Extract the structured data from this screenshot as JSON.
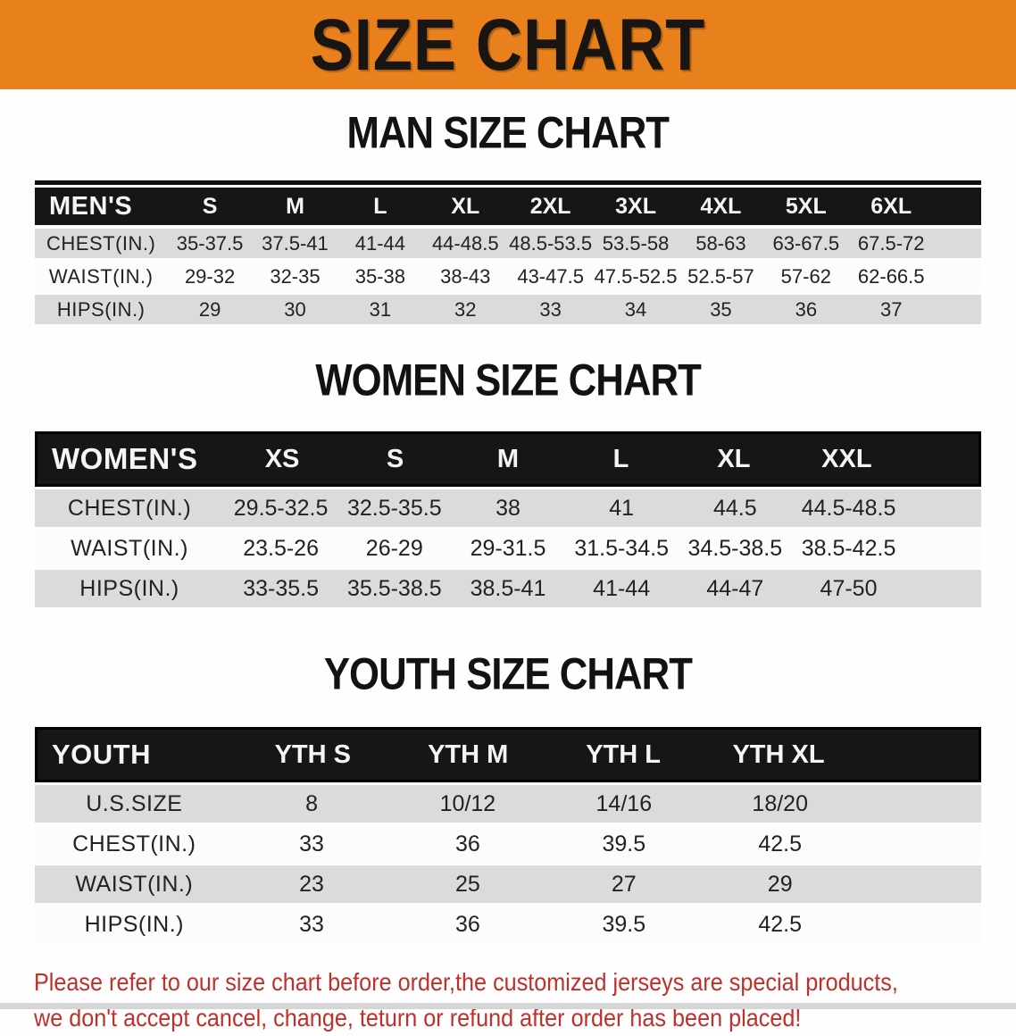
{
  "banner": {
    "title": "SIZE CHART"
  },
  "colors": {
    "banner_bg": "#e8811c",
    "header_bar": "#161616",
    "row_gray": "#dbdbdb",
    "disclaimer_red": "#c0302a"
  },
  "sections": [
    {
      "heading": "MAN SIZE CHART",
      "table": {
        "header_label": "MEN'S",
        "sizes": [
          "S",
          "M",
          "L",
          "XL",
          "2XL",
          "3XL",
          "4XL",
          "5XL",
          "6XL"
        ],
        "rows": [
          {
            "label": "CHEST(IN.)",
            "values": [
              "35-37.5",
              "37.5-41",
              "41-44",
              "44-48.5",
              "48.5-53.5",
              "53.5-58",
              "58-63",
              "63-67.5",
              "67.5-72"
            ]
          },
          {
            "label": "WAIST(IN.)",
            "values": [
              "29-32",
              "32-35",
              "35-38",
              "38-43",
              "43-47.5",
              "47.5-52.5",
              "52.5-57",
              "57-62",
              "62-66.5"
            ]
          },
          {
            "label": "HIPS(IN.)",
            "values": [
              "29",
              "30",
              "31",
              "32",
              "33",
              "34",
              "35",
              "36",
              "37"
            ]
          }
        ]
      }
    },
    {
      "heading": "WOMEN SIZE CHART",
      "table": {
        "header_label": "WOMEN'S",
        "sizes": [
          "XS",
          "S",
          "M",
          "L",
          "XL",
          "XXL"
        ],
        "rows": [
          {
            "label": "CHEST(IN.)",
            "values": [
              "29.5-32.5",
              "32.5-35.5",
              "38",
              "41",
              "44.5",
              "44.5-48.5"
            ]
          },
          {
            "label": "WAIST(IN.)",
            "values": [
              "23.5-26",
              "26-29",
              "29-31.5",
              "31.5-34.5",
              "34.5-38.5",
              "38.5-42.5"
            ]
          },
          {
            "label": "HIPS(IN.)",
            "values": [
              "33-35.5",
              "35.5-38.5",
              "38.5-41",
              "41-44",
              "44-47",
              "47-50"
            ]
          }
        ]
      }
    },
    {
      "heading": "YOUTH SIZE CHART",
      "table": {
        "header_label": "YOUTH",
        "sizes": [
          "YTH S",
          "YTH M",
          "YTH L",
          "YTH XL"
        ],
        "rows": [
          {
            "label": "U.S.SIZE",
            "values": [
              "8",
              "10/12",
              "14/16",
              "18/20"
            ]
          },
          {
            "label": "CHEST(IN.)",
            "values": [
              "33",
              "36",
              "39.5",
              "42.5"
            ]
          },
          {
            "label": "WAIST(IN.)",
            "values": [
              "23",
              "25",
              "27",
              "29"
            ]
          },
          {
            "label": "HIPS(IN.)",
            "values": [
              "33",
              "36",
              "39.5",
              "42.5"
            ]
          }
        ]
      }
    }
  ],
  "disclaimer": {
    "line1": "Please refer to our size chart before order,the customized jerseys are special products,",
    "line2": "we don't accept cancel, change, teturn or refund after order has been placed!"
  }
}
